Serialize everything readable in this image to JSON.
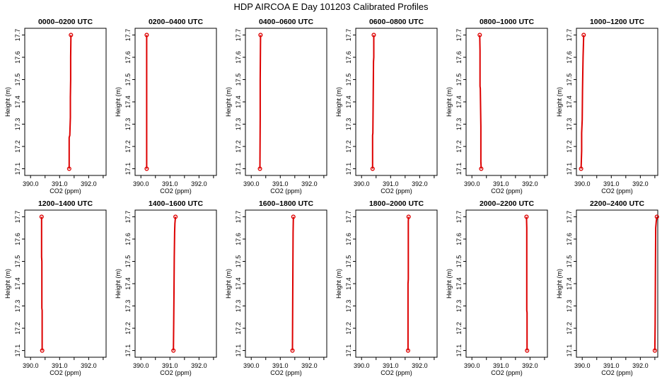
{
  "title": "HDP AIRCOA E  Day 101203  Calibrated Profiles",
  "colors": {
    "profile": "#dd0000",
    "axis": "#000000"
  },
  "chart_data": [
    {
      "type": "line",
      "title": "0000–0200 UTC",
      "xlabel": "CO2 (ppm)",
      "ylabel": "Height (m)",
      "xlim": [
        389.8,
        392.6
      ],
      "ylim": [
        17.07,
        17.73
      ],
      "xticks": [
        "390.0",
        "391.0",
        "392.0"
      ],
      "yticks": [
        "17.1",
        "17.2",
        "17.3",
        "17.4",
        "17.5",
        "17.6",
        "17.7"
      ],
      "series": [
        {
          "x": [
            391.33,
            391.33,
            391.35,
            391.37,
            391.37,
            391.38,
            391.38,
            391.39
          ],
          "y": [
            17.1,
            17.24,
            17.25,
            17.33,
            17.42,
            17.5,
            17.6,
            17.7
          ]
        }
      ],
      "endpoints": [
        {
          "x": 391.33,
          "y": 17.1
        },
        {
          "x": 391.39,
          "y": 17.7
        }
      ]
    },
    {
      "type": "line",
      "title": "0200–0400 UTC",
      "xlabel": "CO2 (ppm)",
      "ylabel": "Height (m)",
      "xlim": [
        389.8,
        392.6
      ],
      "ylim": [
        17.07,
        17.73
      ],
      "xticks": [
        "390.0",
        "391.0",
        "392.0"
      ],
      "yticks": [
        "17.1",
        "17.2",
        "17.3",
        "17.4",
        "17.5",
        "17.6",
        "17.7"
      ],
      "series": [
        {
          "x": [
            390.2,
            390.2
          ],
          "y": [
            17.1,
            17.7
          ]
        }
      ],
      "endpoints": [
        {
          "x": 390.2,
          "y": 17.1
        },
        {
          "x": 390.2,
          "y": 17.7
        }
      ]
    },
    {
      "type": "line",
      "title": "0400–0600 UTC",
      "xlabel": "CO2 (ppm)",
      "ylabel": "Height (m)",
      "xlim": [
        389.8,
        392.6
      ],
      "ylim": [
        17.07,
        17.73
      ],
      "xticks": [
        "390.0",
        "391.0",
        "392.0"
      ],
      "yticks": [
        "17.1",
        "17.2",
        "17.3",
        "17.4",
        "17.5",
        "17.6",
        "17.7"
      ],
      "series": [
        {
          "x": [
            390.3,
            390.31,
            390.31,
            390.32
          ],
          "y": [
            17.1,
            17.33,
            17.5,
            17.7
          ]
        }
      ],
      "endpoints": [
        {
          "x": 390.3,
          "y": 17.1
        },
        {
          "x": 390.32,
          "y": 17.7
        }
      ]
    },
    {
      "type": "line",
      "title": "0600–0800 UTC",
      "xlabel": "CO2 (ppm)",
      "ylabel": "Height (m)",
      "xlim": [
        389.8,
        392.6
      ],
      "ylim": [
        17.07,
        17.73
      ],
      "xticks": [
        "390.0",
        "391.0",
        "392.0"
      ],
      "yticks": [
        "17.1",
        "17.2",
        "17.3",
        "17.4",
        "17.5",
        "17.6",
        "17.7"
      ],
      "series": [
        {
          "x": [
            390.38,
            390.38,
            390.39,
            390.4,
            390.41,
            390.42,
            390.42
          ],
          "y": [
            17.1,
            17.25,
            17.26,
            17.4,
            17.58,
            17.6,
            17.7
          ]
        }
      ],
      "endpoints": [
        {
          "x": 390.38,
          "y": 17.1
        },
        {
          "x": 390.42,
          "y": 17.7
        }
      ]
    },
    {
      "type": "line",
      "title": "0800–1000 UTC",
      "xlabel": "CO2 (ppm)",
      "ylabel": "Height (m)",
      "xlim": [
        389.8,
        392.6
      ],
      "ylim": [
        17.07,
        17.73
      ],
      "xticks": [
        "390.0",
        "391.0",
        "392.0"
      ],
      "yticks": [
        "17.1",
        "17.2",
        "17.3",
        "17.4",
        "17.5",
        "17.6",
        "17.7"
      ],
      "series": [
        {
          "x": [
            390.32,
            390.31,
            390.31,
            390.29,
            390.28,
            390.28,
            390.27
          ],
          "y": [
            17.1,
            17.13,
            17.29,
            17.46,
            17.47,
            17.63,
            17.7
          ]
        }
      ],
      "endpoints": [
        {
          "x": 390.32,
          "y": 17.1
        },
        {
          "x": 390.27,
          "y": 17.7
        }
      ]
    },
    {
      "type": "line",
      "title": "1000–1200 UTC",
      "xlabel": "CO2 (ppm)",
      "ylabel": "Height (m)",
      "xlim": [
        389.8,
        392.6
      ],
      "ylim": [
        17.07,
        17.73
      ],
      "xticks": [
        "390.0",
        "391.0",
        "392.0"
      ],
      "yticks": [
        "17.1",
        "17.2",
        "17.3",
        "17.4",
        "17.5",
        "17.6",
        "17.7"
      ],
      "series": [
        {
          "x": [
            389.96,
            389.98,
            389.98,
            390.0,
            390.01,
            390.02,
            390.03,
            390.05
          ],
          "y": [
            17.1,
            17.18,
            17.26,
            17.32,
            17.45,
            17.53,
            17.6,
            17.7
          ]
        }
      ],
      "endpoints": [
        {
          "x": 389.96,
          "y": 17.1
        },
        {
          "x": 390.05,
          "y": 17.7
        }
      ]
    },
    {
      "type": "line",
      "title": "1200–1400 UTC",
      "xlabel": "CO2 (ppm)",
      "ylabel": "Height (m)",
      "xlim": [
        389.8,
        392.6
      ],
      "ylim": [
        17.07,
        17.73
      ],
      "xticks": [
        "390.0",
        "391.0",
        "392.0"
      ],
      "yticks": [
        "17.1",
        "17.2",
        "17.3",
        "17.4",
        "17.5",
        "17.6",
        "17.7"
      ],
      "series": [
        {
          "x": [
            390.4,
            390.4,
            390.39,
            390.39,
            390.38,
            390.38
          ],
          "y": [
            17.1,
            17.28,
            17.29,
            17.5,
            17.52,
            17.7
          ]
        }
      ],
      "endpoints": [
        {
          "x": 390.4,
          "y": 17.1
        },
        {
          "x": 390.38,
          "y": 17.7
        }
      ]
    },
    {
      "type": "line",
      "title": "1400–1600 UTC",
      "xlabel": "CO2 (ppm)",
      "ylabel": "Height (m)",
      "xlim": [
        389.8,
        392.6
      ],
      "ylim": [
        17.07,
        17.73
      ],
      "xticks": [
        "390.0",
        "391.0",
        "392.0"
      ],
      "yticks": [
        "17.1",
        "17.2",
        "17.3",
        "17.4",
        "17.5",
        "17.6",
        "17.7"
      ],
      "series": [
        {
          "x": [
            391.12,
            391.13,
            391.14,
            391.15,
            391.16,
            391.17,
            391.19
          ],
          "y": [
            17.1,
            17.22,
            17.36,
            17.52,
            17.63,
            17.67,
            17.7
          ]
        }
      ],
      "endpoints": [
        {
          "x": 391.12,
          "y": 17.1
        },
        {
          "x": 391.19,
          "y": 17.7
        }
      ]
    },
    {
      "type": "line",
      "title": "1600–1800 UTC",
      "xlabel": "CO2 (ppm)",
      "ylabel": "Height (m)",
      "xlim": [
        389.8,
        392.6
      ],
      "ylim": [
        17.07,
        17.73
      ],
      "xticks": [
        "390.0",
        "391.0",
        "392.0"
      ],
      "yticks": [
        "17.1",
        "17.2",
        "17.3",
        "17.4",
        "17.5",
        "17.6",
        "17.7"
      ],
      "series": [
        {
          "x": [
            391.42,
            391.43,
            391.44,
            391.45
          ],
          "y": [
            17.1,
            17.35,
            17.63,
            17.7
          ]
        }
      ],
      "endpoints": [
        {
          "x": 391.42,
          "y": 17.1
        },
        {
          "x": 391.45,
          "y": 17.7
        }
      ]
    },
    {
      "type": "line",
      "title": "1800–2000 UTC",
      "xlabel": "CO2 (ppm)",
      "ylabel": "Height (m)",
      "xlim": [
        389.8,
        392.6
      ],
      "ylim": [
        17.07,
        17.73
      ],
      "xticks": [
        "390.0",
        "391.0",
        "392.0"
      ],
      "yticks": [
        "17.1",
        "17.2",
        "17.3",
        "17.4",
        "17.5",
        "17.6",
        "17.7"
      ],
      "series": [
        {
          "x": [
            391.6,
            391.6,
            391.61,
            391.61,
            391.62
          ],
          "y": [
            17.1,
            17.4,
            17.42,
            17.68,
            17.7
          ]
        }
      ],
      "endpoints": [
        {
          "x": 391.6,
          "y": 17.1
        },
        {
          "x": 391.62,
          "y": 17.7
        }
      ]
    },
    {
      "type": "line",
      "title": "2000–2200 UTC",
      "xlabel": "CO2 (ppm)",
      "ylabel": "Height (m)",
      "xlim": [
        389.8,
        392.6
      ],
      "ylim": [
        17.07,
        17.73
      ],
      "xticks": [
        "390.0",
        "391.0",
        "392.0"
      ],
      "yticks": [
        "17.1",
        "17.2",
        "17.3",
        "17.4",
        "17.5",
        "17.6",
        "17.7"
      ],
      "series": [
        {
          "x": [
            391.9,
            391.9,
            391.89,
            391.89,
            391.88
          ],
          "y": [
            17.1,
            17.27,
            17.28,
            17.65,
            17.7
          ]
        }
      ],
      "endpoints": [
        {
          "x": 391.9,
          "y": 17.1
        },
        {
          "x": 391.88,
          "y": 17.7
        }
      ]
    },
    {
      "type": "line",
      "title": "2200–2400 UTC",
      "xlabel": "CO2 (ppm)",
      "ylabel": "Height (m)",
      "xlim": [
        389.8,
        392.6
      ],
      "ylim": [
        17.07,
        17.73
      ],
      "xticks": [
        "390.0",
        "391.0",
        "392.0"
      ],
      "yticks": [
        "17.1",
        "17.2",
        "17.3",
        "17.4",
        "17.5",
        "17.6",
        "17.7"
      ],
      "series": [
        {
          "x": [
            392.5,
            392.51,
            392.52,
            392.53,
            392.55,
            392.57
          ],
          "y": [
            17.1,
            17.22,
            17.46,
            17.65,
            17.68,
            17.7
          ]
        }
      ],
      "endpoints": [
        {
          "x": 392.5,
          "y": 17.1
        },
        {
          "x": 392.57,
          "y": 17.7
        }
      ]
    }
  ]
}
